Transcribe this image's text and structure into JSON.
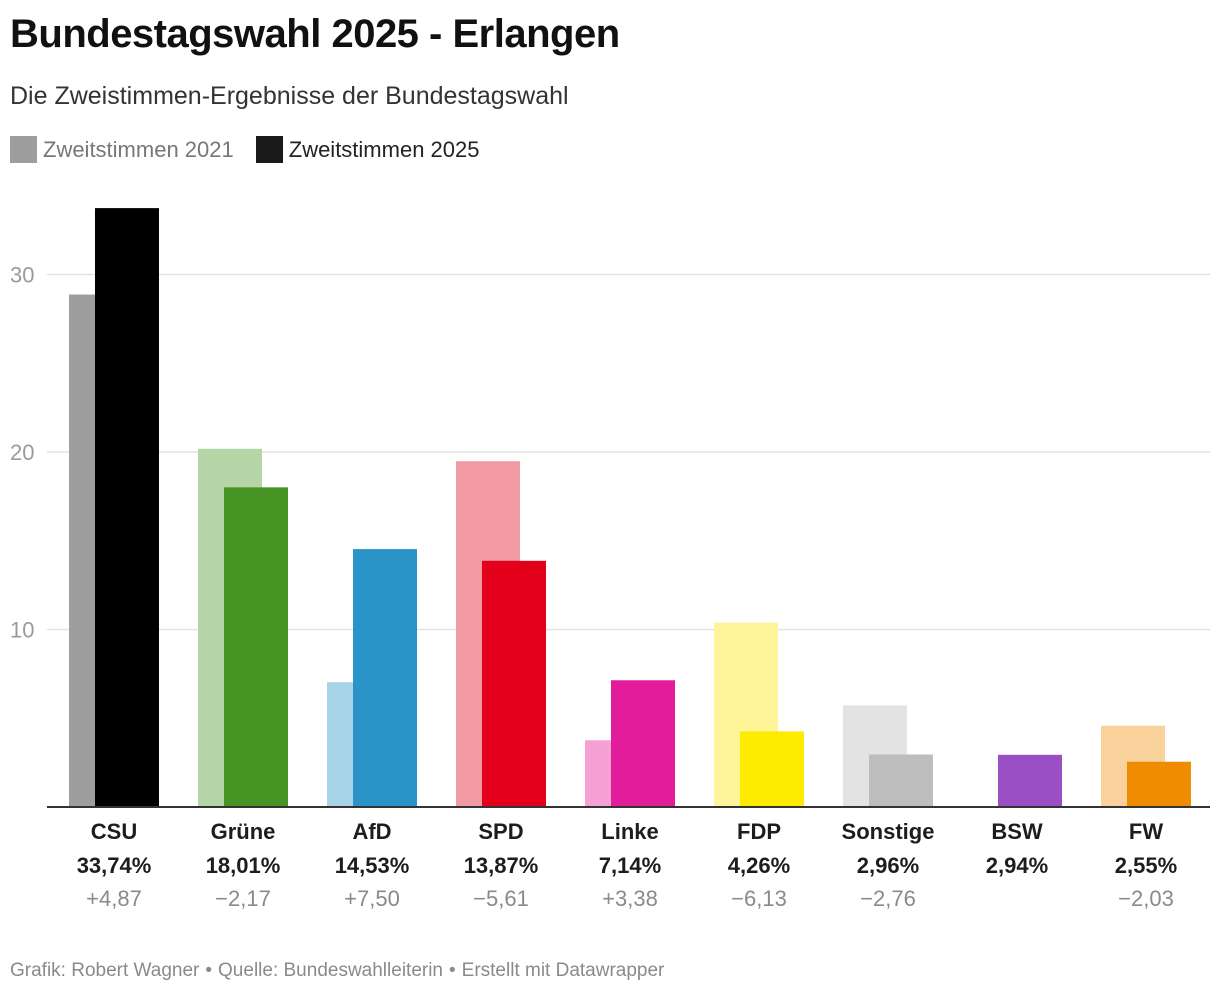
{
  "title": "Bundestagswahl 2025 - Erlangen",
  "subtitle": "Die Zweistimmen-Ergebnisse der Bundestagswahl",
  "legend": [
    {
      "label": "Zweitstimmen 2021",
      "color": "#9e9e9e"
    },
    {
      "label": "Zweitstimmen 2025",
      "color": "#1a1a1a"
    }
  ],
  "footer": {
    "author": "Grafik: Robert Wagner",
    "source": "Quelle: Bundeswahlleiterin",
    "tool": "Erstellt mit Datawrapper",
    "separator": "•"
  },
  "chart_data": {
    "type": "bar",
    "title": "Bundestagswahl 2025 - Erlangen",
    "xlabel": "",
    "ylabel": "",
    "ylim": [
      0,
      35
    ],
    "yticks": [
      10,
      20,
      30
    ],
    "grid": true,
    "legend_position": "top-left",
    "categories": [
      "CSU",
      "Grüne",
      "AfD",
      "SPD",
      "Linke",
      "FDP",
      "Sonstige",
      "BSW",
      "FW"
    ],
    "series": [
      {
        "name": "Zweitstimmen 2021",
        "values": [
          28.87,
          20.18,
          7.03,
          19.48,
          3.76,
          10.39,
          5.72,
          null,
          4.58
        ],
        "colors": [
          "#9e9e9e",
          "#b5d5a6",
          "#a8d4e8",
          "#f19aa3",
          "#f5a1d6",
          "#fdf597",
          "#e3e3e3",
          "#d4b0e6",
          "#f9d39b"
        ]
      },
      {
        "name": "Zweitstimmen 2025",
        "values": [
          33.74,
          18.01,
          14.53,
          13.87,
          7.14,
          4.26,
          2.96,
          2.94,
          2.55
        ],
        "colors": [
          "#000000",
          "#469524",
          "#2a94c8",
          "#e2001a",
          "#e21c9b",
          "#feec00",
          "#bdbdbd",
          "#9b4fc5",
          "#ef8c00"
        ]
      }
    ],
    "value_labels": [
      "33,74%",
      "18,01%",
      "14,53%",
      "13,87%",
      "7,14%",
      "4,26%",
      "2,96%",
      "2,94%",
      "2,55%"
    ],
    "change_labels": [
      "+4,87",
      "−2,17",
      "+7,50",
      "−5,61",
      "+3,38",
      "−6,13",
      "−2,76",
      "",
      "−2,03"
    ]
  }
}
